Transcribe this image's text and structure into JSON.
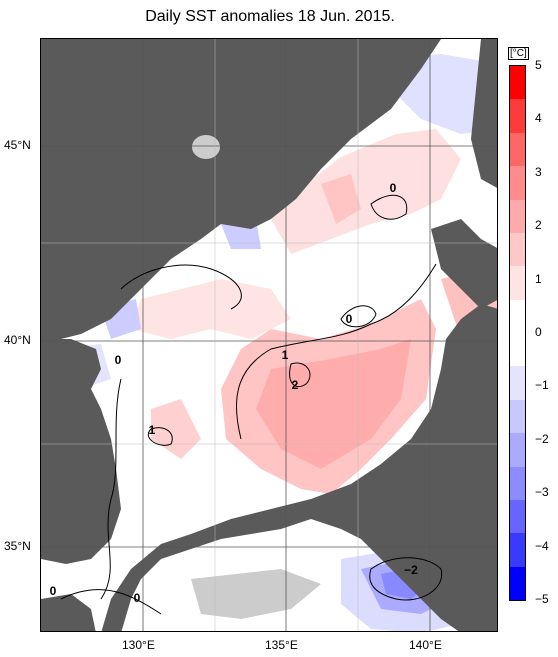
{
  "title": "Daily SST anomalies 18 Jun. 2015.",
  "lat_labels": [
    "45°N",
    "40°N",
    "35°N"
  ],
  "lon_labels": [
    "130°E",
    "135°E",
    "140°E"
  ],
  "contour_labels": [
    "0",
    "0",
    "0",
    "1",
    "2",
    "1",
    "−2",
    "0",
    "0"
  ],
  "colorbar": {
    "unit": "[°C]",
    "ticks": [
      "5",
      "4",
      "3",
      "2",
      "1",
      "0",
      "−1",
      "−2",
      "−3",
      "−4",
      "−5"
    ],
    "colors": [
      "#ff0000",
      "#ff3a3a",
      "#ff6666",
      "#ff8c8c",
      "#ffaaaa",
      "#ffc8c8",
      "#ffe4e4",
      "#ffffff",
      "#ffffff",
      "#e4e4ff",
      "#c8c8ff",
      "#aaaaff",
      "#8c8cff",
      "#6666ff",
      "#3a3aff",
      "#0000ff"
    ]
  },
  "colors": {
    "land": "#5a5a5a",
    "lake": "#cccccc",
    "ocean": "#ffffff"
  }
}
